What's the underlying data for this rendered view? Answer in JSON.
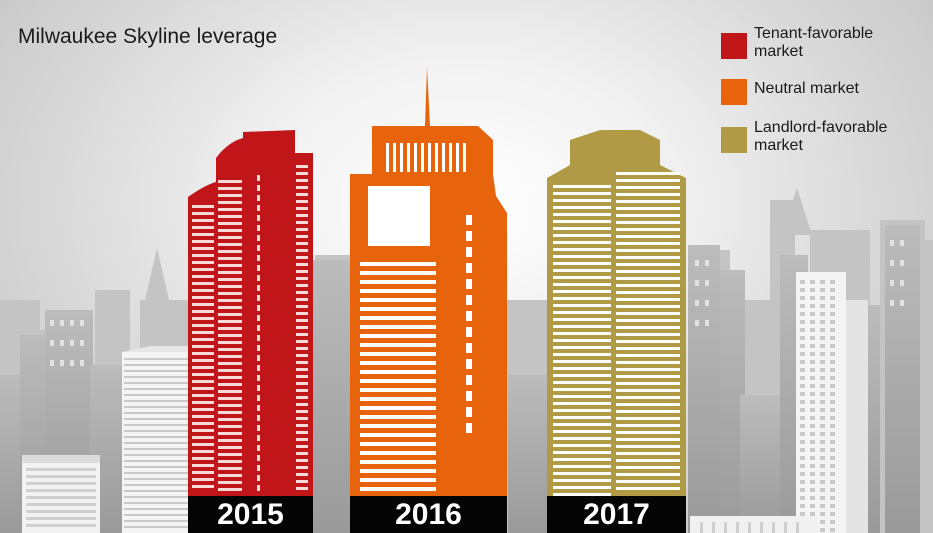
{
  "title": "Milwaukee Skyline leverage",
  "legend": [
    {
      "label": "Tenant-favorable market",
      "color": "#c0161a"
    },
    {
      "label": "Neutral market",
      "color": "#e8640c"
    },
    {
      "label": "Landlord-favorable market",
      "color": "#b09a45"
    }
  ],
  "buildings": [
    {
      "year": "2015",
      "market": "Tenant-favorable market",
      "color": "#c0161a"
    },
    {
      "year": "2016",
      "market": "Neutral market",
      "color": "#e8640c"
    },
    {
      "year": "2017",
      "market": "Landlord-favorable market",
      "color": "#b09a45"
    }
  ]
}
